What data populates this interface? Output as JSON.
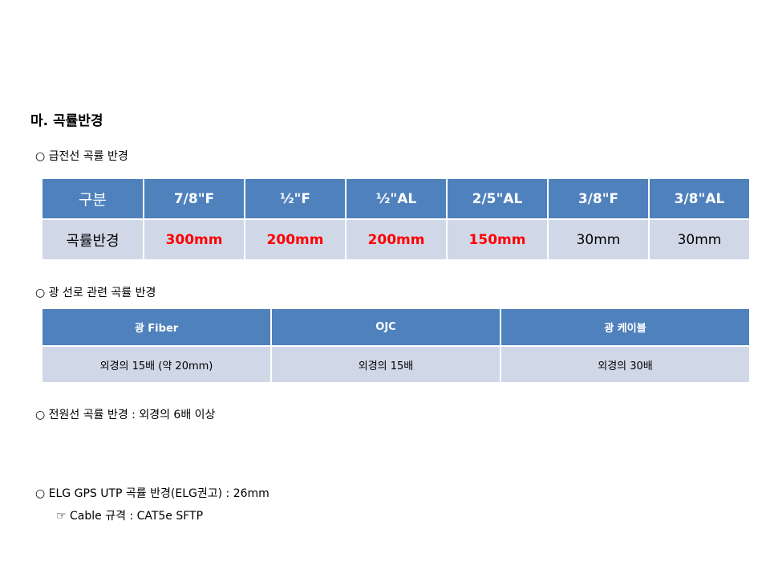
{
  "title": "마. 곡률반경",
  "sections": {
    "feeder": "○ 급전선 곡률 반경",
    "optical": "○ 광 선로 관련 곡률 반경",
    "power": "○ 전원선 곡률 반경 : 외경의 6배 이상",
    "utp": "○ ELG GPS UTP 곡률 반경(ELG권고) : 26mm",
    "cable_spec": "☞ Cable 규격 : CAT5e SFTP"
  },
  "feeder_table": {
    "headers": [
      "구분",
      "7/8\"F",
      "½\"F",
      "½\"AL",
      "2/5\"AL",
      "3/8\"F",
      "3/8\"AL"
    ],
    "row_label": "곡률반경",
    "values": [
      "300mm",
      "200mm",
      "200mm",
      "150mm",
      "30mm",
      "30mm"
    ],
    "highlight_color": "#ff0000"
  },
  "optical_table": {
    "headers": [
      "광 Fiber",
      "OJC",
      "광 케이블"
    ],
    "values": [
      "외경의 15배 (약 20mm)",
      "외경의 15배",
      "외경의 30배"
    ]
  },
  "colors": {
    "header_bg": "#4f81bd",
    "row_bg": "#d0d8e8"
  }
}
